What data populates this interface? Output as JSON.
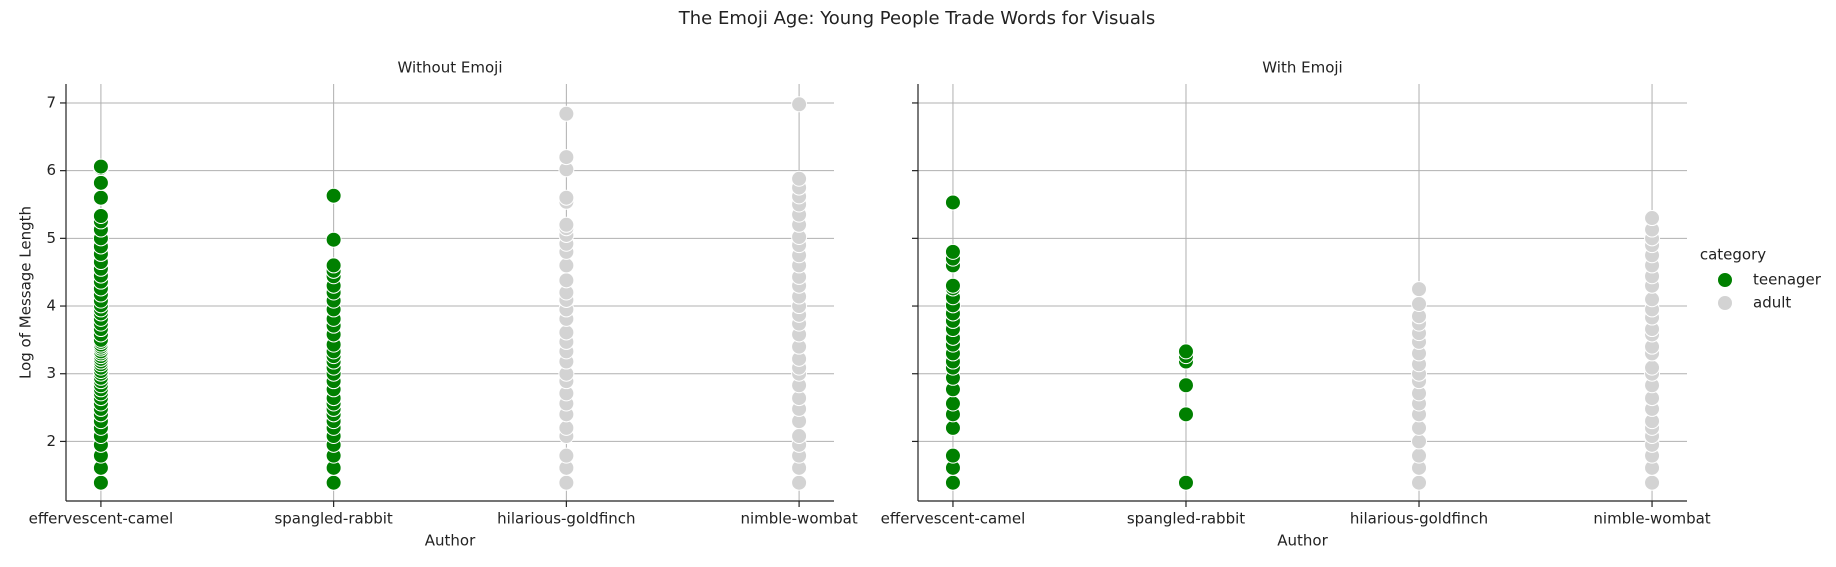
{
  "title": "The Emoji Age: Young People Trade Words for Visuals",
  "legend_title": "category",
  "chart_data": [
    {
      "type": "scatter",
      "title": "Without Emoji",
      "x_label": "Author",
      "y_label": "Log of Message Length",
      "categories": [
        "effervescent-camel",
        "spangled-rabbit",
        "hilarious-goldfinch",
        "nimble-wombat"
      ],
      "ylim": [
        1.12,
        7.28
      ],
      "yticks": [
        2,
        3,
        4,
        5,
        6,
        7
      ],
      "grid": true,
      "series": [
        {
          "name": "teenager",
          "color": "#008000",
          "values": [
            [
              1.39,
              1.61,
              1.79,
              1.95,
              2.08,
              2.2,
              2.3,
              2.4,
              2.48,
              2.56,
              2.64,
              2.71,
              2.77,
              2.83,
              2.89,
              2.94,
              3.0,
              3.04,
              3.09,
              3.14,
              3.18,
              3.22,
              3.26,
              3.3,
              3.33,
              3.37,
              3.4,
              3.43,
              3.47,
              3.5,
              3.58,
              3.66,
              3.74,
              3.81,
              3.89,
              3.95,
              4.01,
              4.08,
              4.17,
              4.26,
              4.36,
              4.45,
              4.55,
              4.65,
              4.77,
              4.88,
              5.0,
              5.13,
              5.25,
              5.33,
              5.6,
              5.82,
              6.04,
              6.06
            ],
            [
              1.39,
              1.61,
              1.79,
              1.95,
              2.08,
              2.2,
              2.3,
              2.4,
              2.48,
              2.56,
              2.64,
              2.77,
              2.89,
              3.0,
              3.09,
              3.18,
              3.26,
              3.33,
              3.43,
              3.58,
              3.71,
              3.81,
              3.95,
              4.08,
              4.2,
              4.3,
              4.44,
              4.52,
              4.6,
              4.98,
              5.63
            ],
            [],
            []
          ]
        },
        {
          "name": "adult",
          "color": "#d3d3d3",
          "values": [
            [],
            [],
            [
              1.39,
              1.61,
              1.79,
              2.08,
              2.2,
              2.4,
              2.56,
              2.71,
              2.89,
              3.0,
              3.18,
              3.33,
              3.47,
              3.61,
              3.81,
              3.95,
              4.09,
              4.2,
              4.38,
              4.6,
              4.8,
              4.92,
              5.05,
              5.15,
              5.2,
              5.54,
              5.6,
              6.02,
              6.2,
              6.84
            ],
            [
              1.39,
              1.61,
              1.79,
              1.95,
              2.08,
              2.3,
              2.48,
              2.64,
              2.83,
              3.0,
              3.09,
              3.22,
              3.4,
              3.58,
              3.74,
              3.87,
              4.0,
              4.14,
              4.3,
              4.43,
              4.6,
              4.75,
              4.9,
              5.02,
              5.2,
              5.35,
              5.5,
              5.62,
              5.75,
              5.88,
              6.98
            ]
          ]
        }
      ]
    },
    {
      "type": "scatter",
      "title": "With Emoji",
      "x_label": "Author",
      "categories": [
        "effervescent-camel",
        "spangled-rabbit",
        "hilarious-goldfinch",
        "nimble-wombat"
      ],
      "ylim": [
        1.12,
        7.28
      ],
      "yticks": [
        2,
        3,
        4,
        5,
        6,
        7
      ],
      "grid": true,
      "series": [
        {
          "name": "teenager",
          "color": "#008000",
          "values": [
            [
              1.39,
              1.61,
              1.79,
              2.2,
              2.4,
              2.56,
              2.77,
              2.94,
              3.09,
              3.18,
              3.3,
              3.43,
              3.53,
              3.66,
              3.78,
              3.89,
              4.01,
              4.13,
              4.26,
              4.3,
              4.6,
              4.7,
              4.8,
              5.53
            ],
            [
              1.39,
              2.4,
              2.83,
              3.18,
              3.26,
              3.33
            ],
            [],
            []
          ]
        },
        {
          "name": "adult",
          "color": "#d3d3d3",
          "values": [
            [],
            [],
            [
              1.39,
              1.61,
              1.79,
              2.0,
              2.2,
              2.4,
              2.56,
              2.71,
              2.89,
              3.0,
              3.14,
              3.3,
              3.47,
              3.6,
              3.74,
              3.85,
              4.03,
              4.25
            ],
            [
              1.39,
              1.61,
              1.79,
              1.95,
              2.08,
              2.2,
              2.3,
              2.48,
              2.64,
              2.83,
              3.0,
              3.09,
              3.3,
              3.4,
              3.58,
              3.66,
              3.83,
              3.95,
              4.1,
              4.3,
              4.44,
              4.6,
              4.75,
              4.9,
              5.0,
              5.13,
              5.3
            ]
          ]
        }
      ]
    }
  ]
}
